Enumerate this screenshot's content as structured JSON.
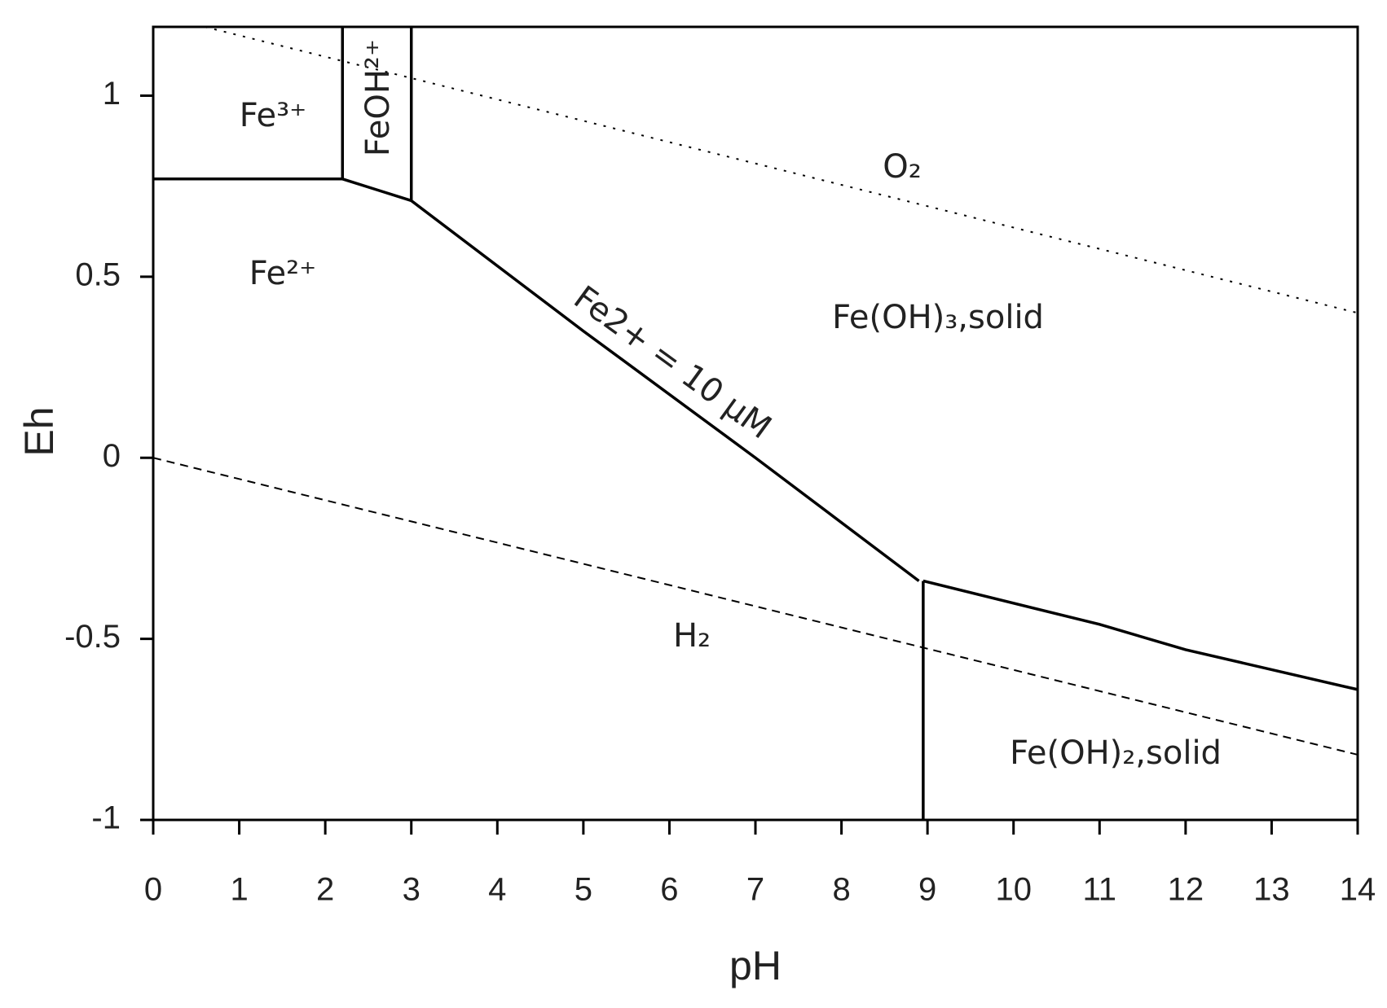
{
  "chart_data": {
    "type": "line",
    "xlabel": "pH",
    "ylabel": "Eh",
    "xlim": [
      0,
      14
    ],
    "xticks": [
      0,
      1,
      2,
      3,
      4,
      5,
      6,
      7,
      8,
      9,
      10,
      11,
      12,
      13,
      14
    ],
    "ylim": [
      -1,
      1.19
    ],
    "yticks": [
      -1,
      -0.5,
      0,
      0.5,
      1
    ],
    "series": [
      {
        "color": "#000000",
        "style": "solid",
        "x": [
          0,
          2.2
        ],
        "values": [
          0.77,
          0.77
        ]
      },
      {
        "color": "#000000",
        "style": "solid",
        "x": [
          2.2,
          2.2
        ],
        "values": [
          0.77,
          1.19
        ]
      },
      {
        "color": "#000000",
        "style": "solid",
        "x": [
          3,
          3
        ],
        "values": [
          0.71,
          1.19
        ]
      },
      {
        "color": "#000000",
        "style": "solid",
        "x": [
          2.2,
          2.6,
          3
        ],
        "values": [
          0.77,
          0.74,
          0.71
        ]
      },
      {
        "color": "#000000",
        "style": "solid",
        "x": [
          3,
          5,
          7,
          8.9
        ],
        "values": [
          0.71,
          0.35,
          0.0,
          -0.34
        ]
      },
      {
        "color": "#000000",
        "style": "solid",
        "x": [
          8.95,
          11,
          12,
          14
        ],
        "values": [
          -0.34,
          -0.46,
          -0.53,
          -0.64
        ]
      },
      {
        "color": "#000000",
        "style": "solid",
        "x": [
          8.95,
          8.95
        ],
        "values": [
          -0.34,
          -1
        ]
      },
      {
        "color": "#000000",
        "style": "dotted",
        "x": [
          0.6,
          14
        ],
        "values": [
          1.19,
          0.4
        ]
      },
      {
        "color": "#000000",
        "style": "dashed",
        "x": [
          0,
          14
        ],
        "values": [
          0,
          -0.82
        ]
      }
    ],
    "annotations": [
      "Fe³⁺",
      "FeOH²⁺",
      "O₂",
      "Fe(OH)₃,solid",
      "Fe²⁺",
      "Fe2+ = 10 μM",
      "H₂",
      "Fe(OH)₂,solid"
    ]
  }
}
